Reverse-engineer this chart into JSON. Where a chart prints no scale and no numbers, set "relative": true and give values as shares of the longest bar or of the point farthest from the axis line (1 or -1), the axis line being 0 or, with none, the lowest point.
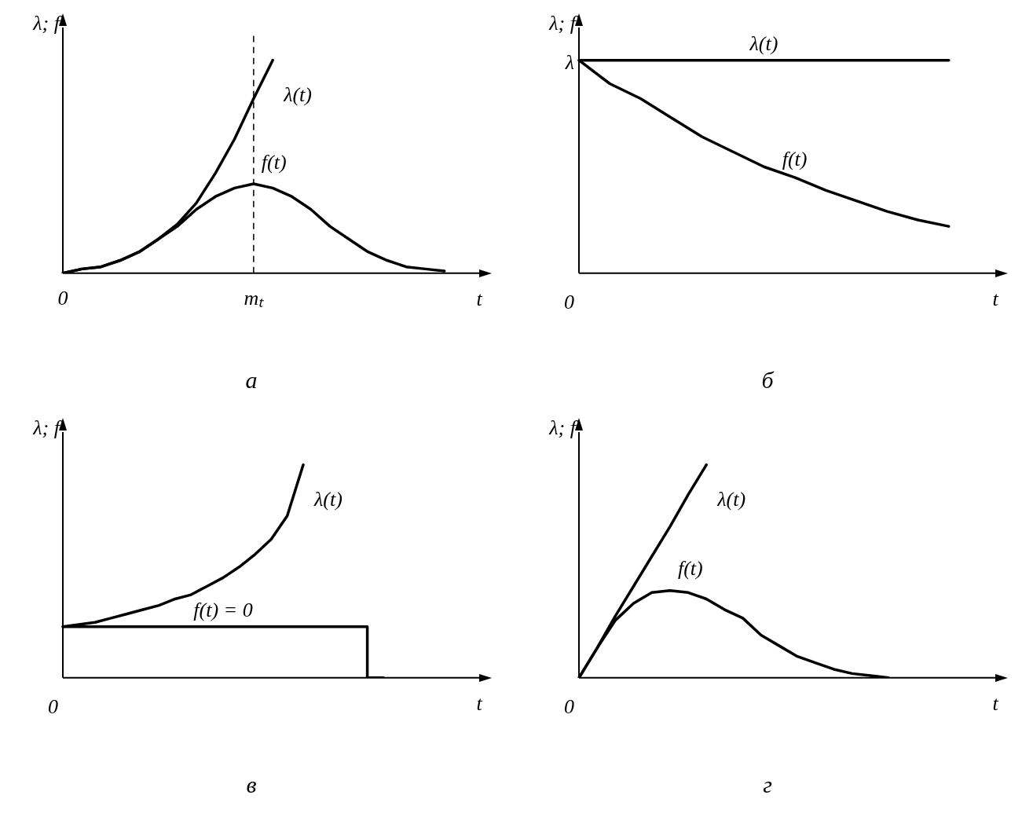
{
  "chart_data": [
    {
      "type": "line",
      "title": "а",
      "xlabel": "t",
      "ylabel": "λ; f",
      "relative": true,
      "marker": "none",
      "line_style": "solid",
      "categories": [
        "0",
        null,
        null,
        null,
        null,
        null,
        null,
        null,
        null,
        null,
        "mₜ",
        null,
        null,
        null,
        null,
        null,
        null,
        null,
        null,
        null,
        null,
        null
      ],
      "series": [
        {
          "name": "λ(t)",
          "color": "#000000",
          "values": [
            0,
            0.02,
            0.03,
            0.06,
            0.1,
            0.16,
            0.23,
            0.33,
            0.47,
            0.63,
            0.82,
            1.0,
            null,
            null,
            null,
            null,
            null,
            null,
            null,
            null,
            null,
            null
          ]
        },
        {
          "name": "f(t)",
          "color": "#000000",
          "values": [
            0,
            0.02,
            0.03,
            0.06,
            0.1,
            0.16,
            0.22,
            0.3,
            0.36,
            0.4,
            0.42,
            0.4,
            0.36,
            0.3,
            0.22,
            0.16,
            0.1,
            0.06,
            0.03,
            0.02,
            0.01,
            null
          ]
        }
      ],
      "ref_lines": [
        {
          "axis": "x",
          "value": "mₜ",
          "line_style": "dashed"
        }
      ]
    },
    {
      "type": "line",
      "title": "б",
      "xlabel": "t",
      "ylabel": "λ; f",
      "relative": true,
      "marker": "none",
      "line_style": "solid",
      "categories": [
        null,
        null,
        null,
        null,
        null,
        null,
        null,
        null,
        null,
        null,
        null,
        null,
        null,
        null
      ],
      "series": [
        {
          "name": "λ(t)",
          "color": "#000000",
          "values": [
            1,
            1,
            1,
            1,
            1,
            1,
            1,
            1,
            1,
            1,
            1,
            1,
            1,
            null
          ]
        },
        {
          "name": "f(t)",
          "color": "#000000",
          "values": [
            1,
            0.89,
            0.82,
            0.73,
            0.64,
            0.57,
            0.5,
            0.45,
            0.39,
            0.34,
            0.29,
            0.25,
            0.22,
            null
          ]
        }
      ],
      "annotations": [
        "λ",
        "0"
      ]
    },
    {
      "type": "line",
      "title": "в",
      "xlabel": "t",
      "ylabel": "λ; f",
      "relative": true,
      "marker": "none",
      "line_style": "solid",
      "categories": [
        null,
        null,
        null,
        null,
        null,
        null,
        null,
        null,
        null,
        null,
        null,
        null,
        null,
        null,
        null,
        null,
        null,
        null,
        null,
        null,
        null,
        null,
        null,
        null,
        null,
        null
      ],
      "annotations": [
        "0"
      ],
      "series": [
        {
          "name": "λ(t)",
          "color": "#000000",
          "values": [
            0.24,
            0.25,
            0.26,
            0.28,
            0.3,
            0.32,
            0.34,
            0.37,
            0.39,
            0.43,
            0.47,
            0.52,
            0.58,
            0.65,
            0.76,
            1.0,
            null,
            null,
            null,
            null,
            null,
            null,
            null,
            null,
            null,
            null
          ]
        },
        {
          "name": "f(t) = 0",
          "type": "step",
          "color": "#000000",
          "values": [
            0.24,
            0.24,
            0.24,
            0.24,
            0.24,
            0.24,
            0.24,
            0.24,
            0.24,
            0.24,
            0.24,
            0.24,
            0.24,
            0.24,
            0.24,
            0.24,
            0.24,
            0.24,
            0.24,
            0.24,
            0,
            null,
            null,
            null,
            null,
            null
          ]
        }
      ]
    },
    {
      "type": "line",
      "title": "г",
      "xlabel": "t",
      "ylabel": "λ; f",
      "relative": true,
      "marker": "none",
      "line_style": "solid",
      "categories": [
        null,
        null,
        null,
        null,
        null,
        null,
        null,
        null,
        null,
        null,
        null,
        null,
        null,
        null,
        null,
        null,
        null,
        null,
        null,
        null,
        null,
        null,
        null
      ],
      "annotations": [
        "0"
      ],
      "series": [
        {
          "name": "λ(t)",
          "color": "#000000",
          "values": [
            0,
            0.14,
            0.29,
            0.43,
            0.57,
            0.71,
            0.86,
            1.0,
            null,
            null,
            null,
            null,
            null,
            null,
            null,
            null,
            null,
            null,
            null,
            null,
            null,
            null,
            null
          ]
        },
        {
          "name": "f(t)",
          "color": "#000000",
          "values": [
            0,
            0.14,
            0.27,
            0.35,
            0.4,
            0.41,
            0.4,
            0.37,
            0.32,
            0.28,
            0.2,
            0.15,
            0.1,
            0.07,
            0.04,
            0.02,
            0.01,
            0,
            null,
            null,
            null,
            null,
            null
          ]
        }
      ]
    }
  ]
}
